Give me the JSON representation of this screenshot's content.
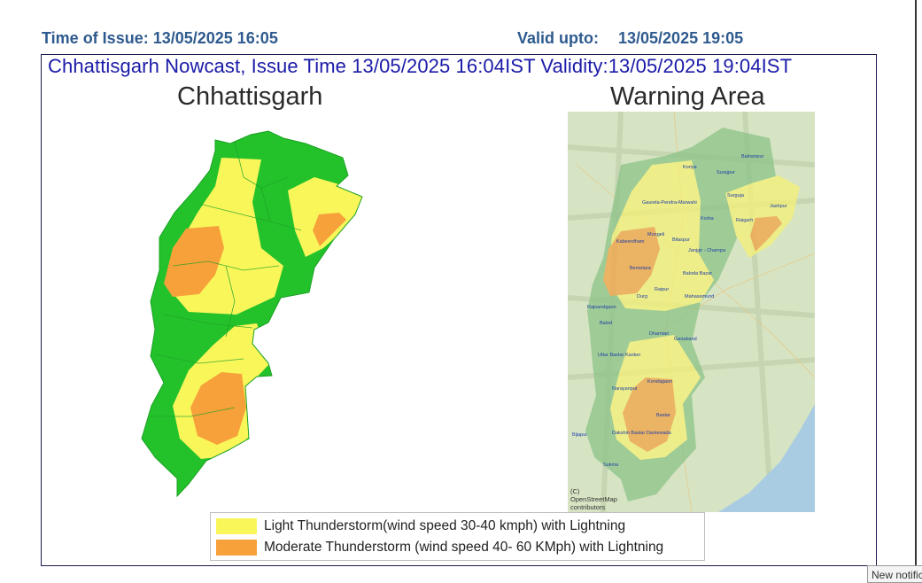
{
  "header": {
    "issue_time": "Time of Issue: 13/05/2025 16:05",
    "valid_label": "Valid upto:",
    "valid_value": "13/05/2025 19:05"
  },
  "banner": "Chhattisgarh Nowcast, Issue Time 13/05/2025 16:04IST  Validity:13/05/2025 19:04IST",
  "left_map": {
    "title": "Chhattisgarh"
  },
  "right_map": {
    "title": "Warning Area",
    "attribution": [
      "(C)",
      "OpenStreetMap",
      "contributors"
    ],
    "district_labels": [
      "Balrampur",
      "Koriya",
      "Surajpur",
      "Surguja",
      "Jashpur",
      "Gaurela-Pendra-Marwahi",
      "Korba",
      "Raigarh",
      "Mungeli",
      "Kabeerdham",
      "Bilaspur",
      "Janjgir - Champa",
      "Bemetara",
      "Baloda Bazar",
      "Raipur",
      "Durg",
      "Mahasamund",
      "Rajnandgaon",
      "Balod",
      "Dhamtari",
      "Gariaband",
      "Uttar Bastar Kanker",
      "Kondagaon",
      "Narayanpur",
      "Bastar",
      "Bijapur",
      "Dakshin Bastar Dantewada",
      "Sukma"
    ]
  },
  "legend": [
    {
      "label": "Light Thunderstorm(wind speed 30-40 kmph) with Lightning",
      "color": "#f9f65a"
    },
    {
      "label": "Moderate Thunderstorm (wind speed 40- 60 KMph) with Lightning",
      "color": "#f7a13a"
    }
  ],
  "colors": {
    "safe_green": "#24c22a",
    "light_yellow": "#f9f65a",
    "moderate_orange": "#f7a13a",
    "header_blue": "#2e5a8e",
    "banner_blue": "#1a1aa8"
  },
  "notification": "New notifications"
}
